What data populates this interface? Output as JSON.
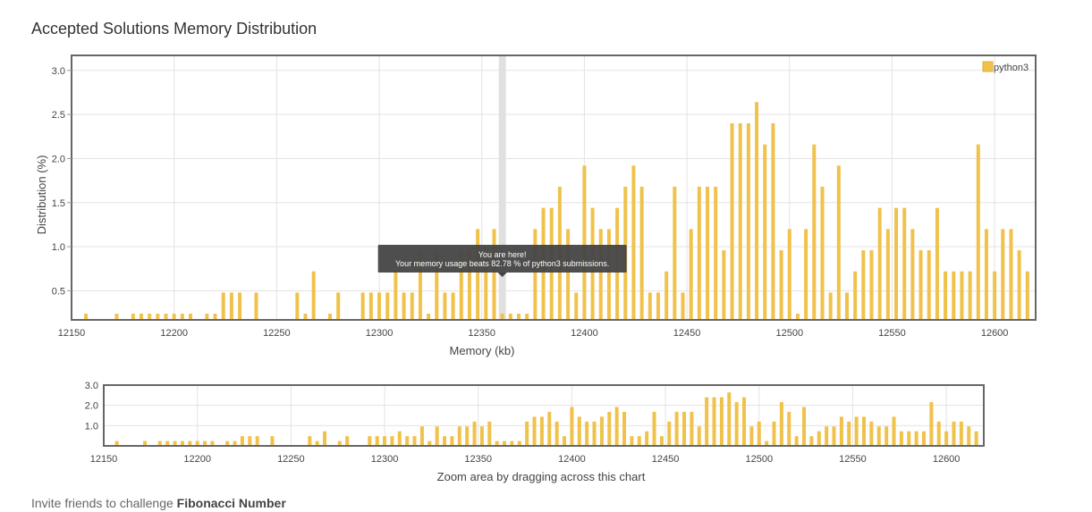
{
  "page": {
    "title": "Accepted Solutions Memory Distribution",
    "footer_prefix": "Invite friends to challenge",
    "footer_problem": "Fibonacci Number"
  },
  "colors": {
    "bar": "#f0c24b",
    "bar_stroke": "#e0b03a",
    "frame": "#666666",
    "grid": "#e3e3e3",
    "highlight_band": "#e0e0e0",
    "tooltip_bg": "#444444",
    "tooltip_text": "#ffffff"
  },
  "chart_data": [
    {
      "type": "bar",
      "name": "main",
      "xlabel": "Memory (kb)",
      "ylabel": "Distribution (%)",
      "xlim": [
        12150,
        12620
      ],
      "ylim": [
        0.17,
        3.17
      ],
      "xticks": [
        12150,
        12200,
        12250,
        12300,
        12350,
        12400,
        12450,
        12500,
        12550,
        12600
      ],
      "yticks": [
        0.5,
        1.0,
        1.5,
        2.0,
        2.5,
        3.0
      ],
      "ytick_labels": [
        "0.5",
        "1.0",
        "1.5",
        "2.0",
        "2.5",
        "3.0"
      ],
      "grid": true,
      "legend": {
        "position": "top-right",
        "entries": [
          "python3"
        ]
      },
      "highlight_x": 12360,
      "tooltip": {
        "line1": "You are here!",
        "line2": "Your memory usage beats 82.78 % of python3 submissions."
      },
      "series": [
        {
          "name": "python3",
          "x": [
            12157,
            12172,
            12180,
            12184,
            12188,
            12192,
            12196,
            12200,
            12204,
            12208,
            12216,
            12220,
            12224,
            12228,
            12232,
            12240,
            12260,
            12264,
            12268,
            12276,
            12280,
            12292,
            12296,
            12300,
            12304,
            12308,
            12312,
            12316,
            12320,
            12324,
            12328,
            12332,
            12336,
            12340,
            12344,
            12348,
            12352,
            12356,
            12360,
            12364,
            12368,
            12372,
            12376,
            12380,
            12384,
            12388,
            12392,
            12396,
            12400,
            12404,
            12408,
            12412,
            12416,
            12420,
            12424,
            12428,
            12432,
            12436,
            12440,
            12444,
            12448,
            12452,
            12456,
            12460,
            12464,
            12468,
            12472,
            12476,
            12480,
            12484,
            12488,
            12492,
            12496,
            12500,
            12504,
            12508,
            12512,
            12516,
            12520,
            12524,
            12528,
            12532,
            12536,
            12540,
            12544,
            12548,
            12552,
            12556,
            12560,
            12564,
            12568,
            12572,
            12576,
            12580,
            12584,
            12588,
            12592,
            12596,
            12600,
            12604,
            12608,
            12612,
            12616
          ],
          "values": [
            0.24,
            0.24,
            0.24,
            0.24,
            0.24,
            0.24,
            0.24,
            0.24,
            0.24,
            0.24,
            0.24,
            0.24,
            0.48,
            0.48,
            0.48,
            0.48,
            0.48,
            0.24,
            0.72,
            0.24,
            0.48,
            0.48,
            0.48,
            0.48,
            0.48,
            0.72,
            0.48,
            0.48,
            0.96,
            0.24,
            0.96,
            0.48,
            0.48,
            0.96,
            0.96,
            1.2,
            0.96,
            1.2,
            0.24,
            0.24,
            0.24,
            0.24,
            1.2,
            1.44,
            1.44,
            1.68,
            1.2,
            0.48,
            1.92,
            1.44,
            1.2,
            1.2,
            1.44,
            1.68,
            1.92,
            1.68,
            0.48,
            0.48,
            0.72,
            1.68,
            0.48,
            1.2,
            1.68,
            1.68,
            1.68,
            0.96,
            2.4,
            2.4,
            2.4,
            2.64,
            2.16,
            2.4,
            0.96,
            1.2,
            0.24,
            1.2,
            2.16,
            1.68,
            0.48,
            1.92,
            0.48,
            0.72,
            0.96,
            0.96,
            1.44,
            1.2,
            1.44,
            1.44,
            1.2,
            0.96,
            0.96,
            1.44,
            0.72,
            0.72,
            0.72,
            0.72,
            2.16,
            1.2,
            0.72,
            1.2,
            1.2,
            0.96,
            0.72
          ]
        }
      ]
    },
    {
      "type": "bar",
      "name": "navigator",
      "xlabel": "Zoom area by dragging across this chart",
      "xlim": [
        12150,
        12620
      ],
      "ylim": [
        0,
        3.0
      ],
      "xticks": [
        12150,
        12200,
        12250,
        12300,
        12350,
        12400,
        12450,
        12500,
        12550,
        12600
      ],
      "yticks": [
        1.0,
        2.0,
        3.0
      ],
      "ytick_labels": [
        "1.0",
        "2.0",
        "3.0"
      ],
      "grid": true
    }
  ]
}
